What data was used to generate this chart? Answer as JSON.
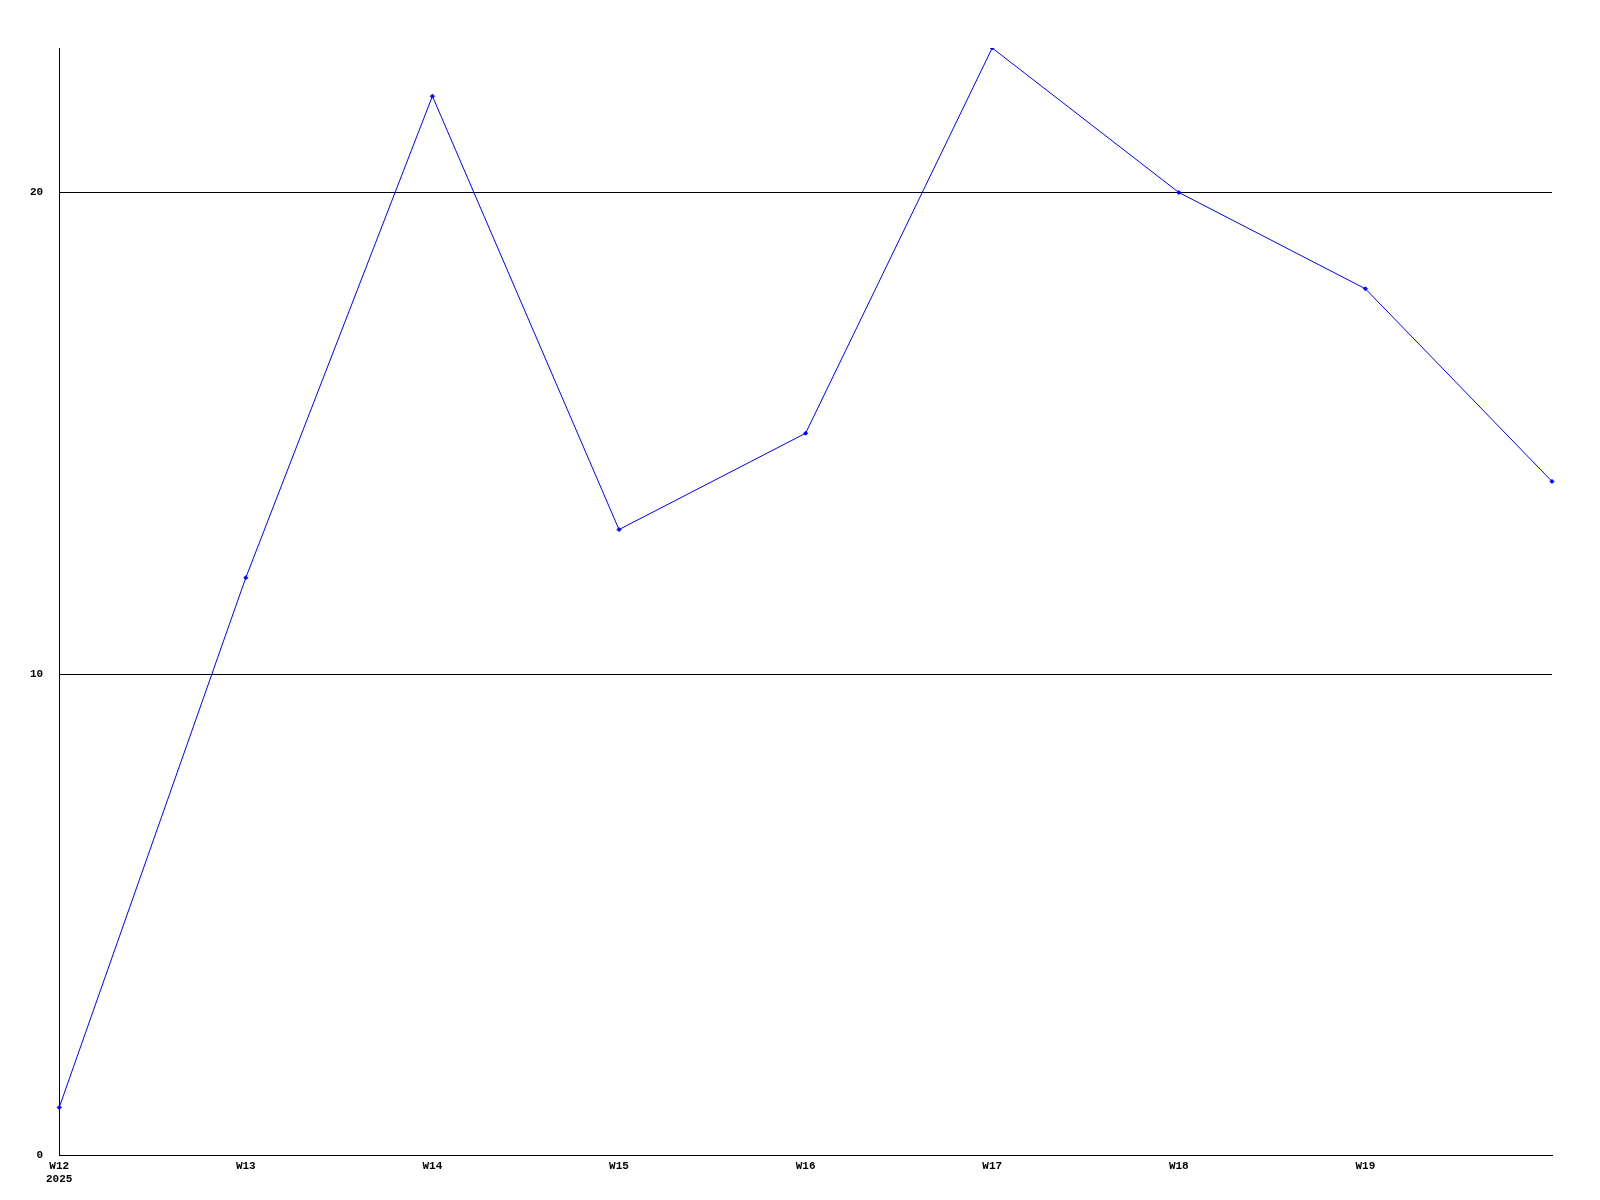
{
  "chart_data": {
    "type": "line",
    "categories": [
      "W12\n2025",
      "W13",
      "W14",
      "W15",
      "W16",
      "W17",
      "W18",
      "W19",
      null
    ],
    "series": [
      {
        "color": "#0000ff",
        "values": [
          1,
          12,
          22,
          13,
          15,
          23,
          20,
          18,
          14
        ]
      }
    ],
    "ylim": [
      0,
      23
    ],
    "yticks": [
      0,
      10,
      20
    ],
    "grid": "y",
    "marker": "diamond",
    "legend": false
  }
}
